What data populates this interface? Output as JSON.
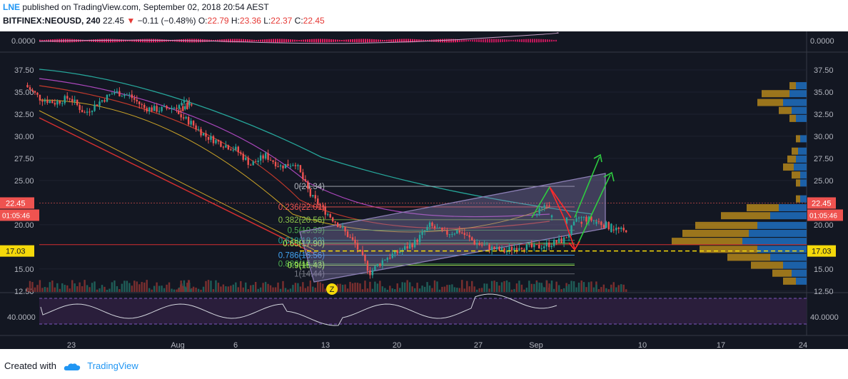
{
  "header": {
    "author": "LNE",
    "published_text": "published on TradingView.com, September 02, 2018 20:54 AEST",
    "symbol": "BITFINEX:NEOUSD, 240",
    "last": "22.45",
    "change": "−0.11 (−0.48%)",
    "open_label": "O:",
    "open": "22.79",
    "high_label": "H:",
    "high": "23.36",
    "low_label": "L:",
    "low": "22.37",
    "close_label": "C:",
    "close": "22.45"
  },
  "footer": {
    "created_with": "Created with",
    "brand": "TradingView"
  },
  "colors": {
    "background": "#131722",
    "up": "#26a69a",
    "down": "#ef5350",
    "channel": "#8c7fb5",
    "support": "#f5d90a",
    "resistance_line": "#d32f2f",
    "arrow_up": "#2ecc40",
    "arrow_down": "#ff2a2a",
    "vp_blue": "#1e6fc0",
    "vp_gold": "#c9961b"
  },
  "chart_data": {
    "type": "candlestick",
    "symbol": "BITFINEX:NEOUSD",
    "interval": "240",
    "price_axis": {
      "ticks": [
        "37.50",
        "35.00",
        "32.50",
        "30.00",
        "27.50",
        "25.00",
        "20.00",
        "15.00",
        "12.50"
      ],
      "ylim": [
        12.5,
        38.5
      ],
      "last_label": "22.45",
      "countdown_label": "01:05:46",
      "level_label": "17.03"
    },
    "time_axis": {
      "ticks": [
        "23",
        "Aug",
        "6",
        "13",
        "20",
        "27",
        "Sep",
        "10",
        "17",
        "24"
      ]
    },
    "top_indicator": {
      "tick": "0.0000"
    },
    "bottom_indicator": {
      "tick": "40.0000"
    },
    "close_path": [
      {
        "d": "Jul 20",
        "v": 35.8
      },
      {
        "d": "Jul 21",
        "v": 34.3
      },
      {
        "d": "Jul 22",
        "v": 33.8
      },
      {
        "d": "Jul 23",
        "v": 34.4
      },
      {
        "d": "Jul 24",
        "v": 32.6
      },
      {
        "d": "Jul 25",
        "v": 33.9
      },
      {
        "d": "Jul 26",
        "v": 35.0
      },
      {
        "d": "Jul 27",
        "v": 34.6
      },
      {
        "d": "Jul 28",
        "v": 33.2
      },
      {
        "d": "Jul 29",
        "v": 33.0
      },
      {
        "d": "Jul 30",
        "v": 33.3
      },
      {
        "d": "Jul 31",
        "v": 33.9
      },
      {
        "d": "Aug 1",
        "v": 32.6
      },
      {
        "d": "Aug 2",
        "v": 31.5
      },
      {
        "d": "Aug 3",
        "v": 30.0
      },
      {
        "d": "Aug 4",
        "v": 29.2
      },
      {
        "d": "Aug 5",
        "v": 28.5
      },
      {
        "d": "Aug 6",
        "v": 26.8
      },
      {
        "d": "Aug 7",
        "v": 27.8
      },
      {
        "d": "Aug 8",
        "v": 26.6
      },
      {
        "d": "Aug 9",
        "v": 27.0
      },
      {
        "d": "Aug 10",
        "v": 23.3
      },
      {
        "d": "Aug 11",
        "v": 21.5
      },
      {
        "d": "Aug 12",
        "v": 19.8
      },
      {
        "d": "Aug 13",
        "v": 17.8
      },
      {
        "d": "Aug 14",
        "v": 14.6
      },
      {
        "d": "Aug 15",
        "v": 16.2
      },
      {
        "d": "Aug 16",
        "v": 17.0
      },
      {
        "d": "Aug 17",
        "v": 18.0
      },
      {
        "d": "Aug 18",
        "v": 19.9
      },
      {
        "d": "Aug 19",
        "v": 19.0
      },
      {
        "d": "Aug 20",
        "v": 19.3
      },
      {
        "d": "Aug 21",
        "v": 18.0
      },
      {
        "d": "Aug 22",
        "v": 17.4
      },
      {
        "d": "Aug 23",
        "v": 17.0
      },
      {
        "d": "Aug 24",
        "v": 17.6
      },
      {
        "d": "Aug 25",
        "v": 17.4
      },
      {
        "d": "Aug 26",
        "v": 17.8
      },
      {
        "d": "Aug 27",
        "v": 18.3
      },
      {
        "d": "Aug 28",
        "v": 20.8
      },
      {
        "d": "Aug 29",
        "v": 20.5
      },
      {
        "d": "Aug 30",
        "v": 19.8
      },
      {
        "d": "Aug 31",
        "v": 19.2
      },
      {
        "d": "Sep 1",
        "v": 21.0
      },
      {
        "d": "Sep 2",
        "v": 22.45
      }
    ],
    "fibonacci": [
      {
        "ratio": "0",
        "value": 24.34,
        "label": "0(24.34)",
        "color": "#b2b5be"
      },
      {
        "ratio": "0.236",
        "value": 22.01,
        "label": "0.236(22.01)",
        "color": "#ef5350"
      },
      {
        "ratio": "0.382",
        "value": 20.56,
        "label": "0.382(20.56)",
        "color": "#8bc34a"
      },
      {
        "ratio": "0.5",
        "value": 19.39,
        "label": "0.5(19.39)",
        "color": "#4caf50"
      },
      {
        "ratio": "0.618",
        "value": 18.23,
        "label": "0.618(18.23)",
        "color": "#26a69a"
      },
      {
        "ratio": "0.65",
        "value": 17.9,
        "label": "0.65(17.90)",
        "color": "#b2ff59"
      },
      {
        "ratio": "0.786",
        "value": 16.56,
        "label": "0.786(16.56)",
        "color": "#42a5f5"
      },
      {
        "ratio": "0.886",
        "value": 15.57,
        "label": "0.886(15.57)",
        "color": "#4caf50"
      },
      {
        "ratio": "0.9",
        "value": 15.43,
        "label": "0.9(15.43)",
        "color": "#b2ff59"
      },
      {
        "ratio": "1",
        "value": 14.44,
        "label": "1(14.44)",
        "color": "#787b86"
      }
    ],
    "support_level": 17.03,
    "volume_profile": [
      {
        "price": 35.8,
        "blue": 0.1,
        "gold": 0.06
      },
      {
        "price": 34.9,
        "blue": 0.16,
        "gold": 0.26
      },
      {
        "price": 33.9,
        "blue": 0.22,
        "gold": 0.24
      },
      {
        "price": 33.0,
        "blue": 0.14,
        "gold": 0.12
      },
      {
        "price": 32.1,
        "blue": 0.1,
        "gold": 0.06
      },
      {
        "price": 29.8,
        "blue": 0.06,
        "gold": 0.04
      },
      {
        "price": 28.4,
        "blue": 0.08,
        "gold": 0.06
      },
      {
        "price": 27.5,
        "blue": 0.1,
        "gold": 0.08
      },
      {
        "price": 26.6,
        "blue": 0.12,
        "gold": 0.1
      },
      {
        "price": 25.7,
        "blue": 0.06,
        "gold": 0.08
      },
      {
        "price": 24.8,
        "blue": 0.06,
        "gold": 0.04
      },
      {
        "price": 23.0,
        "blue": 0.06,
        "gold": 0.04
      },
      {
        "price": 22.0,
        "blue": 0.26,
        "gold": 0.3
      },
      {
        "price": 21.1,
        "blue": 0.34,
        "gold": 0.46
      },
      {
        "price": 20.0,
        "blue": 0.46,
        "gold": 0.58
      },
      {
        "price": 19.1,
        "blue": 0.54,
        "gold": 0.62
      },
      {
        "price": 18.2,
        "blue": 0.6,
        "gold": 0.66
      },
      {
        "price": 17.3,
        "blue": 0.46,
        "gold": 0.54
      },
      {
        "price": 16.4,
        "blue": 0.34,
        "gold": 0.4
      },
      {
        "price": 15.5,
        "blue": 0.22,
        "gold": 0.3
      },
      {
        "price": 14.6,
        "blue": 0.14,
        "gold": 0.18
      },
      {
        "price": 13.7,
        "blue": 0.1,
        "gold": 0.12
      }
    ],
    "marker": "Z"
  }
}
